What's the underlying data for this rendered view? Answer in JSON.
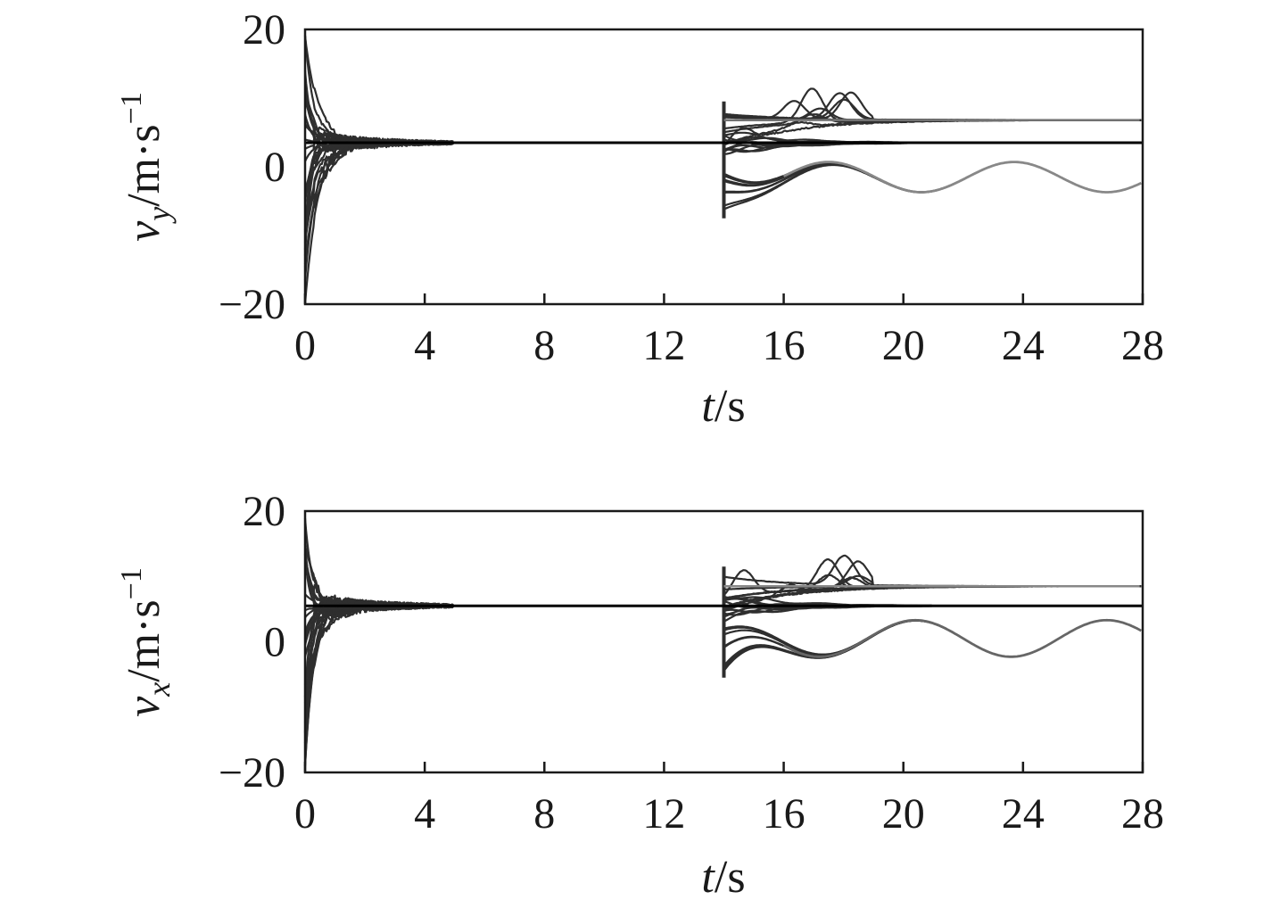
{
  "chart_data": [
    {
      "type": "line",
      "title": "",
      "xlabel": {
        "var": "t",
        "unit": "/s"
      },
      "ylabel": {
        "var": "v",
        "sub": "y",
        "unit": "/m·s",
        "exp": "−1"
      },
      "xlim": [
        0,
        28
      ],
      "ylim": [
        -20,
        20
      ],
      "xticks": [
        0,
        4,
        8,
        12,
        16,
        20,
        24,
        28
      ],
      "yticks": [
        -20,
        0,
        20
      ],
      "xtick_labels": [
        "0",
        "4",
        "8",
        "12",
        "16",
        "20",
        "24",
        "28"
      ],
      "ytick_labels": [
        "−20",
        "0",
        "20"
      ],
      "grid": false,
      "legend": "none",
      "reference": {
        "y": 3.5,
        "color": "#000000"
      },
      "upper_target": {
        "y": 6.8,
        "from_x": 14,
        "color": "#777777"
      },
      "lower_wave": {
        "start_x": 14,
        "mean": -1.5,
        "amp": 2.2,
        "period": 6.2,
        "phase_x": 17.5,
        "color": "#888888"
      },
      "transient_x_end": 5,
      "phase2_x_start": 14,
      "series_color": "#2e2e2e"
    },
    {
      "type": "line",
      "title": "",
      "xlabel": {
        "var": "t",
        "unit": "/s"
      },
      "ylabel": {
        "var": "v",
        "sub": "x",
        "unit": "/m·s",
        "exp": "−1"
      },
      "xlim": [
        0,
        28
      ],
      "ylim": [
        -20,
        20
      ],
      "xticks": [
        0,
        4,
        8,
        12,
        16,
        20,
        24,
        28
      ],
      "yticks": [
        -20,
        0,
        20
      ],
      "xtick_labels": [
        "0",
        "4",
        "8",
        "12",
        "16",
        "20",
        "24",
        "28"
      ],
      "ytick_labels": [
        "−20",
        "0",
        "20"
      ],
      "grid": false,
      "legend": "none",
      "reference": {
        "y": 5.5,
        "color": "#000000"
      },
      "upper_target": {
        "y": 8.5,
        "from_x": 14,
        "color": "#888888"
      },
      "lower_wave": {
        "start_x": 14,
        "mean": 0.5,
        "amp": 2.8,
        "period": 6.4,
        "phase_x": 20.4,
        "color": "#666666"
      },
      "transient_x_end": 5,
      "phase2_x_start": 14,
      "series_color": "#2e2e2e"
    }
  ]
}
